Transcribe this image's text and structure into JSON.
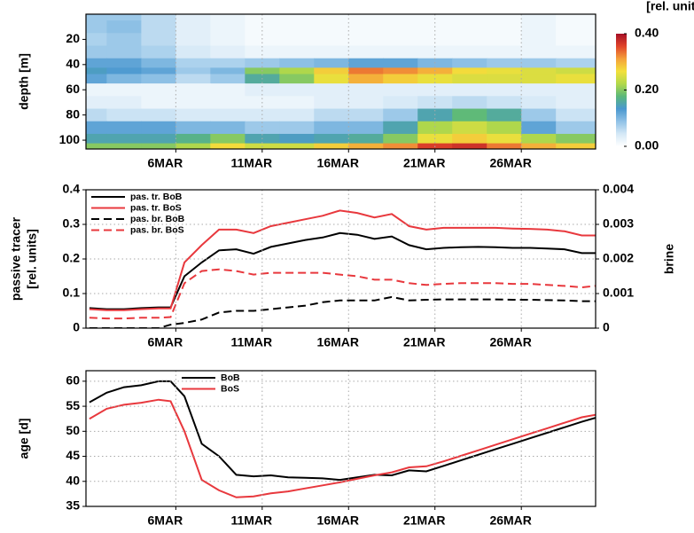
{
  "chart_data": [
    {
      "type": "heatmap",
      "ylabel": "depth [m]",
      "x": [
        1,
        3,
        5,
        7,
        9,
        11,
        13,
        15,
        17,
        19,
        21,
        23,
        25,
        27,
        29
      ],
      "y": [
        0,
        10,
        20,
        30,
        40,
        45,
        50,
        60,
        70,
        80,
        90,
        100,
        105
      ],
      "values": [
        [
          0.08,
          0.08,
          0.06,
          0.03,
          0.02,
          0.01,
          0.01,
          0.01,
          0.01,
          0.01,
          0.01,
          0.01,
          0.01,
          0.02,
          0.01
        ],
        [
          0.08,
          0.09,
          0.06,
          0.03,
          0.02,
          0.01,
          0.01,
          0.01,
          0.01,
          0.01,
          0.01,
          0.01,
          0.01,
          0.02,
          0.01
        ],
        [
          0.07,
          0.08,
          0.06,
          0.03,
          0.02,
          0.01,
          0.01,
          0.01,
          0.01,
          0.01,
          0.01,
          0.01,
          0.01,
          0.02,
          0.01
        ],
        [
          0.08,
          0.08,
          0.07,
          0.04,
          0.03,
          0.02,
          0.02,
          0.02,
          0.02,
          0.02,
          0.02,
          0.02,
          0.02,
          0.02,
          0.02
        ],
        [
          0.12,
          0.12,
          0.1,
          0.07,
          0.07,
          0.08,
          0.09,
          0.1,
          0.12,
          0.12,
          0.1,
          0.09,
          0.08,
          0.08,
          0.07
        ],
        [
          0.14,
          0.13,
          0.12,
          0.08,
          0.1,
          0.2,
          0.22,
          0.28,
          0.33,
          0.32,
          0.3,
          0.27,
          0.26,
          0.25,
          0.24
        ],
        [
          0.12,
          0.1,
          0.09,
          0.06,
          0.08,
          0.16,
          0.2,
          0.26,
          0.3,
          0.28,
          0.26,
          0.25,
          0.25,
          0.25,
          0.26
        ],
        [
          0.02,
          0.02,
          0.02,
          0.02,
          0.02,
          0.03,
          0.03,
          0.03,
          0.03,
          0.03,
          0.03,
          0.03,
          0.03,
          0.03,
          0.03
        ],
        [
          0.03,
          0.03,
          0.02,
          0.02,
          0.02,
          0.02,
          0.02,
          0.03,
          0.03,
          0.04,
          0.05,
          0.06,
          0.05,
          0.04,
          0.03
        ],
        [
          0.06,
          0.05,
          0.05,
          0.04,
          0.04,
          0.04,
          0.04,
          0.06,
          0.06,
          0.08,
          0.15,
          0.18,
          0.16,
          0.08,
          0.05
        ],
        [
          0.12,
          0.12,
          0.12,
          0.1,
          0.1,
          0.08,
          0.08,
          0.1,
          0.1,
          0.15,
          0.22,
          0.24,
          0.22,
          0.12,
          0.08
        ],
        [
          0.15,
          0.15,
          0.15,
          0.17,
          0.2,
          0.15,
          0.14,
          0.15,
          0.16,
          0.2,
          0.26,
          0.28,
          0.26,
          0.22,
          0.2
        ],
        [
          0.2,
          0.2,
          0.2,
          0.22,
          0.27,
          0.24,
          0.24,
          0.28,
          0.3,
          0.32,
          0.36,
          0.37,
          0.33,
          0.3,
          0.28
        ]
      ],
      "xlim": [
        0.8,
        30.3
      ],
      "ylim": [
        0,
        107
      ],
      "y_inverted": true,
      "yticks": [
        20,
        40,
        60,
        80,
        100
      ],
      "xticks": [
        {
          "value": 6,
          "label": "6MAR"
        },
        {
          "value": 11,
          "label": "11MAR"
        },
        {
          "value": 16,
          "label": "16MAR"
        },
        {
          "value": 21,
          "label": "21MAR"
        },
        {
          "value": 26,
          "label": "26MAR"
        }
      ],
      "grid": true,
      "colorbar": {
        "label": "[rel. units]",
        "lim": [
          0,
          0.4
        ],
        "ticks": [
          {
            "value": 0,
            "label": "0.00"
          },
          {
            "value": 0.2,
            "label": "0.20"
          },
          {
            "value": 0.4,
            "label": "0.40"
          }
        ],
        "colormap": [
          "#ffffff",
          "#d4e8f6",
          "#8fc1e6",
          "#4a98cf",
          "#5bb87a",
          "#b3d94a",
          "#f3e03b",
          "#f4a03a",
          "#e0442a",
          "#a50f26"
        ]
      }
    },
    {
      "type": "line",
      "ylabel": [
        "passive tracer",
        "[rel. units]"
      ],
      "y2label": "brine",
      "x": [
        1,
        2,
        3,
        4,
        5,
        5.7,
        6.5,
        7.5,
        8.5,
        9.5,
        10.5,
        11.5,
        12.5,
        13.5,
        14.5,
        15.5,
        16.5,
        17.5,
        18.5,
        19.5,
        20.5,
        21.5,
        22.5,
        23.5,
        24.5,
        25.5,
        26.5,
        27.5,
        28.5,
        29.5,
        30.3
      ],
      "series": [
        {
          "name": "pas. tr. BoB",
          "color": "#000000",
          "style": "solid",
          "values": [
            0.058,
            0.055,
            0.055,
            0.058,
            0.06,
            0.06,
            0.15,
            0.19,
            0.225,
            0.228,
            0.215,
            0.235,
            0.245,
            0.255,
            0.262,
            0.275,
            0.27,
            0.258,
            0.265,
            0.24,
            0.228,
            0.232,
            0.234,
            0.235,
            0.234,
            0.232,
            0.232,
            0.23,
            0.228,
            0.217,
            0.217
          ]
        },
        {
          "name": "pas. tr. BoS",
          "color": "#e8383d",
          "style": "solid",
          "values": [
            0.055,
            0.052,
            0.052,
            0.055,
            0.057,
            0.057,
            0.19,
            0.24,
            0.285,
            0.285,
            0.275,
            0.295,
            0.305,
            0.315,
            0.325,
            0.34,
            0.333,
            0.32,
            0.33,
            0.295,
            0.285,
            0.29,
            0.29,
            0.29,
            0.29,
            0.288,
            0.287,
            0.285,
            0.28,
            0.268,
            0.268
          ]
        },
        {
          "name": "pas. br. BoB",
          "color": "#000000",
          "style": "dashed",
          "axis": "y2",
          "values": [
            0,
            0,
            0,
            0,
            0,
            0.0001,
            0.00015,
            0.00025,
            0.00045,
            0.0005,
            0.0005,
            0.00055,
            0.0006,
            0.00065,
            0.00075,
            0.0008,
            0.0008,
            0.0008,
            0.0009,
            0.0008,
            0.00082,
            0.00083,
            0.00083,
            0.00083,
            0.00083,
            0.00082,
            0.00082,
            0.00081,
            0.0008,
            0.00078,
            0.00078
          ]
        },
        {
          "name": "pas. br. BoS",
          "color": "#e8383d",
          "style": "dashed",
          "axis": "y2",
          "values": [
            0.0003,
            0.00028,
            0.00028,
            0.0003,
            0.0003,
            0.00032,
            0.0013,
            0.00165,
            0.0017,
            0.00165,
            0.00155,
            0.0016,
            0.0016,
            0.0016,
            0.0016,
            0.00155,
            0.0015,
            0.0014,
            0.0014,
            0.0013,
            0.00125,
            0.00128,
            0.0013,
            0.0013,
            0.0013,
            0.00128,
            0.00128,
            0.00125,
            0.00122,
            0.00118,
            0.00122
          ]
        }
      ],
      "xlim": [
        0.8,
        30.3
      ],
      "ylim": [
        0,
        0.4
      ],
      "yticks": [
        0,
        0.1,
        0.2,
        0.3,
        0.4
      ],
      "y2lim": [
        0,
        0.004
      ],
      "y2ticks": [
        0,
        0.001,
        0.002,
        0.003,
        0.004
      ],
      "xticks": [
        {
          "value": 6,
          "label": "6MAR"
        },
        {
          "value": 11,
          "label": "11MAR"
        },
        {
          "value": 16,
          "label": "16MAR"
        },
        {
          "value": 21,
          "label": "21MAR"
        },
        {
          "value": 26,
          "label": "26MAR"
        }
      ],
      "grid": true,
      "legend": "upper left"
    },
    {
      "type": "line",
      "ylabel": "age [d]",
      "x": [
        1,
        2,
        3,
        4,
        5,
        5.7,
        6.5,
        7.5,
        8.5,
        9.5,
        10.5,
        11.5,
        12.5,
        13.5,
        14.5,
        15.5,
        16.5,
        17.5,
        18.5,
        19.5,
        20.5,
        21.5,
        22.5,
        23.5,
        24.5,
        25.5,
        26.5,
        27.5,
        28.5,
        29.5,
        30.3
      ],
      "series": [
        {
          "name": "BoB",
          "color": "#000000",
          "style": "solid",
          "values": [
            55.8,
            57.7,
            58.8,
            59.2,
            60,
            60,
            57,
            47.5,
            45,
            41.3,
            41,
            41.2,
            40.8,
            40.7,
            40.6,
            40.3,
            40.8,
            41.3,
            41.2,
            42.2,
            42,
            43.1,
            44.2,
            45.3,
            46.4,
            47.5,
            48.6,
            49.7,
            50.8,
            51.9,
            52.7
          ]
        },
        {
          "name": "BoS",
          "color": "#e8383d",
          "style": "solid",
          "values": [
            52.5,
            54.5,
            55.3,
            55.7,
            56.3,
            56,
            50,
            40.3,
            38.2,
            36.8,
            37,
            37.6,
            38,
            38.6,
            39.2,
            39.8,
            40.5,
            41.2,
            41.8,
            42.8,
            43,
            44,
            45.1,
            46.2,
            47.3,
            48.4,
            49.5,
            50.6,
            51.7,
            52.8,
            53.3
          ]
        }
      ],
      "xlim": [
        0.8,
        30.3
      ],
      "ylim": [
        35,
        62.1
      ],
      "yticks": [
        35,
        40,
        45,
        50,
        55,
        60
      ],
      "xticks": [
        {
          "value": 6,
          "label": "6MAR"
        },
        {
          "value": 11,
          "label": "11MAR"
        },
        {
          "value": 16,
          "label": "16MAR"
        },
        {
          "value": 21,
          "label": "21MAR"
        },
        {
          "value": 26,
          "label": "26MAR"
        }
      ],
      "grid": true,
      "legend": "upper center"
    }
  ]
}
